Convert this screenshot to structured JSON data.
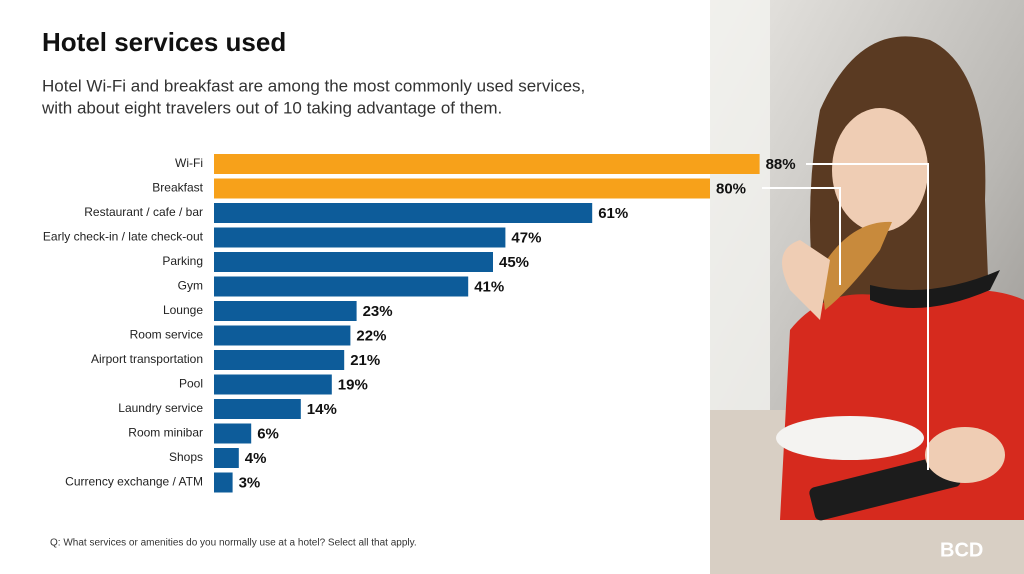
{
  "chart_data": {
    "type": "bar",
    "orientation": "horizontal",
    "title": "Hotel services used",
    "subtitle": [
      "Hotel Wi-Fi and breakfast are among the most commonly used services,",
      "with about eight travelers out of 10 taking advantage of them."
    ],
    "categories": [
      "Wi-Fi",
      "Breakfast",
      "Restaurant / cafe / bar",
      "Early check-in / late check-out",
      "Parking",
      "Gym",
      "Lounge",
      "Room service",
      "Airport transportation",
      "Pool",
      "Laundry service",
      "Room minibar",
      "Shops",
      "Currency exchange / ATM"
    ],
    "values": [
      88,
      80,
      61,
      47,
      45,
      41,
      23,
      22,
      21,
      19,
      14,
      6,
      4,
      3
    ],
    "value_labels": [
      "88%",
      "80%",
      "61%",
      "47%",
      "45%",
      "41%",
      "23%",
      "22%",
      "21%",
      "19%",
      "14%",
      "6%",
      "4%",
      "3%"
    ],
    "colors": [
      "#f7a11a",
      "#f7a11a",
      "#0d5c9a",
      "#0d5c9a",
      "#0d5c9a",
      "#0d5c9a",
      "#0d5c9a",
      "#0d5c9a",
      "#0d5c9a",
      "#0d5c9a",
      "#0d5c9a",
      "#0d5c9a",
      "#0d5c9a",
      "#0d5c9a"
    ],
    "footnote": "Q: What services or amenities do you normally use at a hotel? Select all that apply."
  },
  "logo": "BCD"
}
